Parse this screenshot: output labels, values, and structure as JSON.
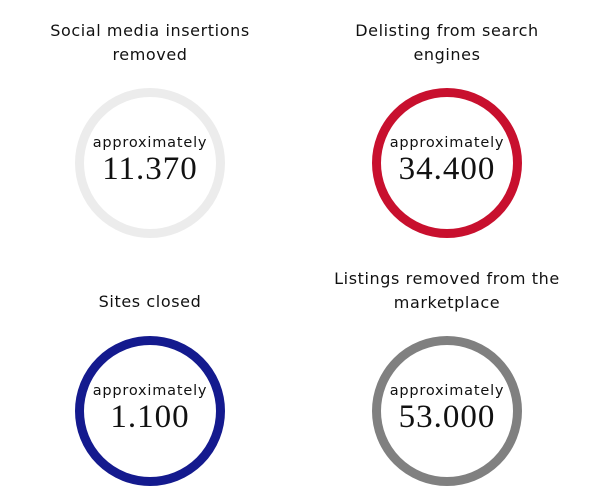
{
  "stats": [
    {
      "title": "Social media insertions removed",
      "qualifier": "approximately",
      "value": "11.370",
      "color": "#ececec"
    },
    {
      "title": "Delisting from search engines",
      "qualifier": "approximately",
      "value": "34.400",
      "color": "#c8102e"
    },
    {
      "title": "Sites closed",
      "qualifier": "approximately",
      "value": "1.100",
      "color": "#141a8e"
    },
    {
      "title": "Listings removed from the marketplace",
      "qualifier": "approximately",
      "value": "53.000",
      "color": "#808080"
    }
  ]
}
